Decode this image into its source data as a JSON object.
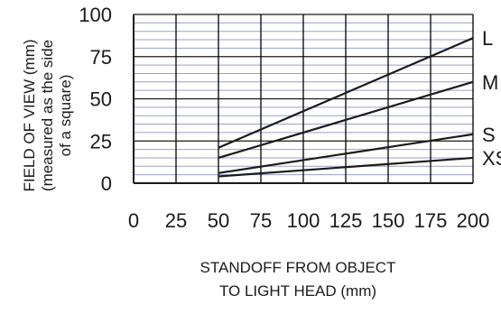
{
  "chart_data": {
    "type": "line",
    "xlabel_lines": [
      "STANDOFF FROM OBJECT",
      "TO LIGHT HEAD (mm)"
    ],
    "ylabel_lines": [
      "FIELD OF VIEW (mm)",
      "(measured as the side",
      "of a square)"
    ],
    "xlim": [
      0,
      200
    ],
    "ylim": [
      0,
      100
    ],
    "x_ticks": [
      0,
      25,
      50,
      75,
      100,
      125,
      150,
      175,
      200
    ],
    "y_ticks": [
      0,
      25,
      50,
      75,
      100
    ],
    "x_tick_labels": [
      "0",
      "25",
      "50",
      "75",
      "100",
      "125",
      "150",
      "175",
      "200"
    ],
    "y_tick_labels": [
      "0",
      "25",
      "50",
      "75",
      "100"
    ],
    "grid": {
      "vertical": true,
      "horizontal_minor": true,
      "minor_step": 5
    },
    "series": [
      {
        "name": "L",
        "x": [
          50,
          200
        ],
        "y": [
          21,
          86
        ]
      },
      {
        "name": "M",
        "x": [
          50,
          200
        ],
        "y": [
          15,
          60
        ]
      },
      {
        "name": "S",
        "x": [
          50,
          200
        ],
        "y": [
          6,
          29
        ]
      },
      {
        "name": "XS",
        "x": [
          50,
          200
        ],
        "y": [
          4,
          15
        ]
      }
    ],
    "colors": {
      "line": "#1a1a1a",
      "grid_v": "#000000",
      "grid_h": "#9aa0c8"
    }
  }
}
